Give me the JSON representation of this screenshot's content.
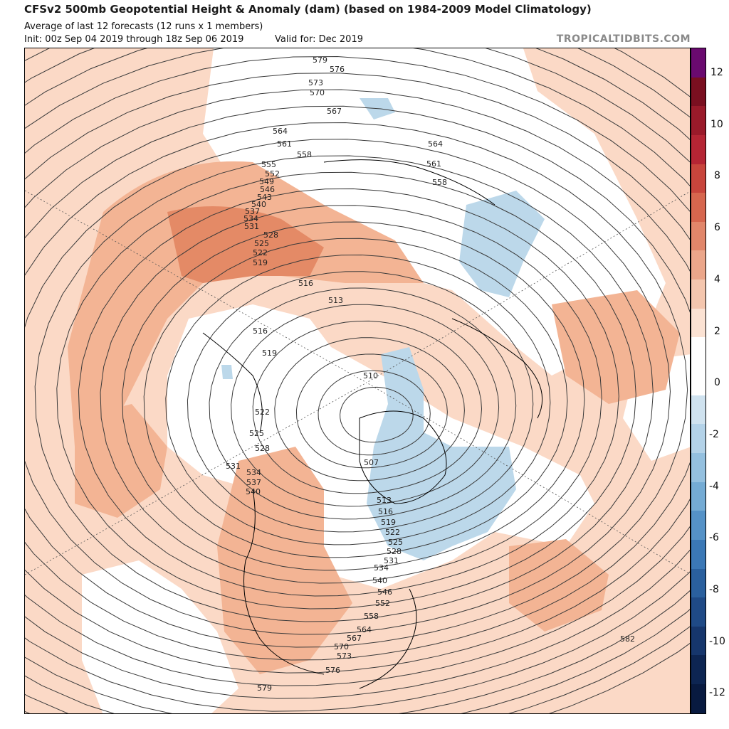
{
  "header": {
    "title": "CFSv2 500mb Geopotential Height & Anomaly (dam) (based on 1984-2009 Model Climatology)",
    "subtitle": "Average of last 12 forecasts (12 runs x 1 members)",
    "init": "Init: 00z Sep 04 2019 through 18z Sep 06 2019",
    "valid": "Valid for: Dec 2019",
    "source": "TROPICALTIDBITS.COM"
  },
  "colorbar": {
    "ticks": [
      "12",
      "10",
      "8",
      "6",
      "4",
      "2",
      "0",
      "-2",
      "-4",
      "-6",
      "-8",
      "-10",
      "-12"
    ],
    "colors": [
      "#6a0a6f",
      "#7a0f20",
      "#9a1a2a",
      "#b52534",
      "#c8453c",
      "#d6664e",
      "#e1866a",
      "#eba68a",
      "#f4c6ae",
      "#fbe2d3",
      "#ffffff",
      "#ffffff",
      "#cfe2ef",
      "#b3d2e8",
      "#94c0df",
      "#74abd4",
      "#5592c7",
      "#3b78b6",
      "#2a609e",
      "#1f4a86",
      "#16366c",
      "#0d2552",
      "#081a40"
    ]
  },
  "contour_labels": [
    "579",
    "576",
    "573",
    "570",
    "567",
    "564",
    "561",
    "558",
    "555",
    "552",
    "549",
    "546",
    "543",
    "540",
    "537",
    "534",
    "531",
    "528",
    "525",
    "522",
    "519",
    "516",
    "513",
    "510",
    "507",
    "582"
  ],
  "legend_colors": {
    "land_outline": "#000000",
    "contour": "#3a3a3a",
    "pos_anomaly_light": "#fbd9c6",
    "pos_anomaly_mid": "#f3b494",
    "pos_anomaly_strong": "#e48a66",
    "neg_anomaly_light": "#bcd8ea",
    "neg_anomaly_mid": "#9fc7e2"
  }
}
